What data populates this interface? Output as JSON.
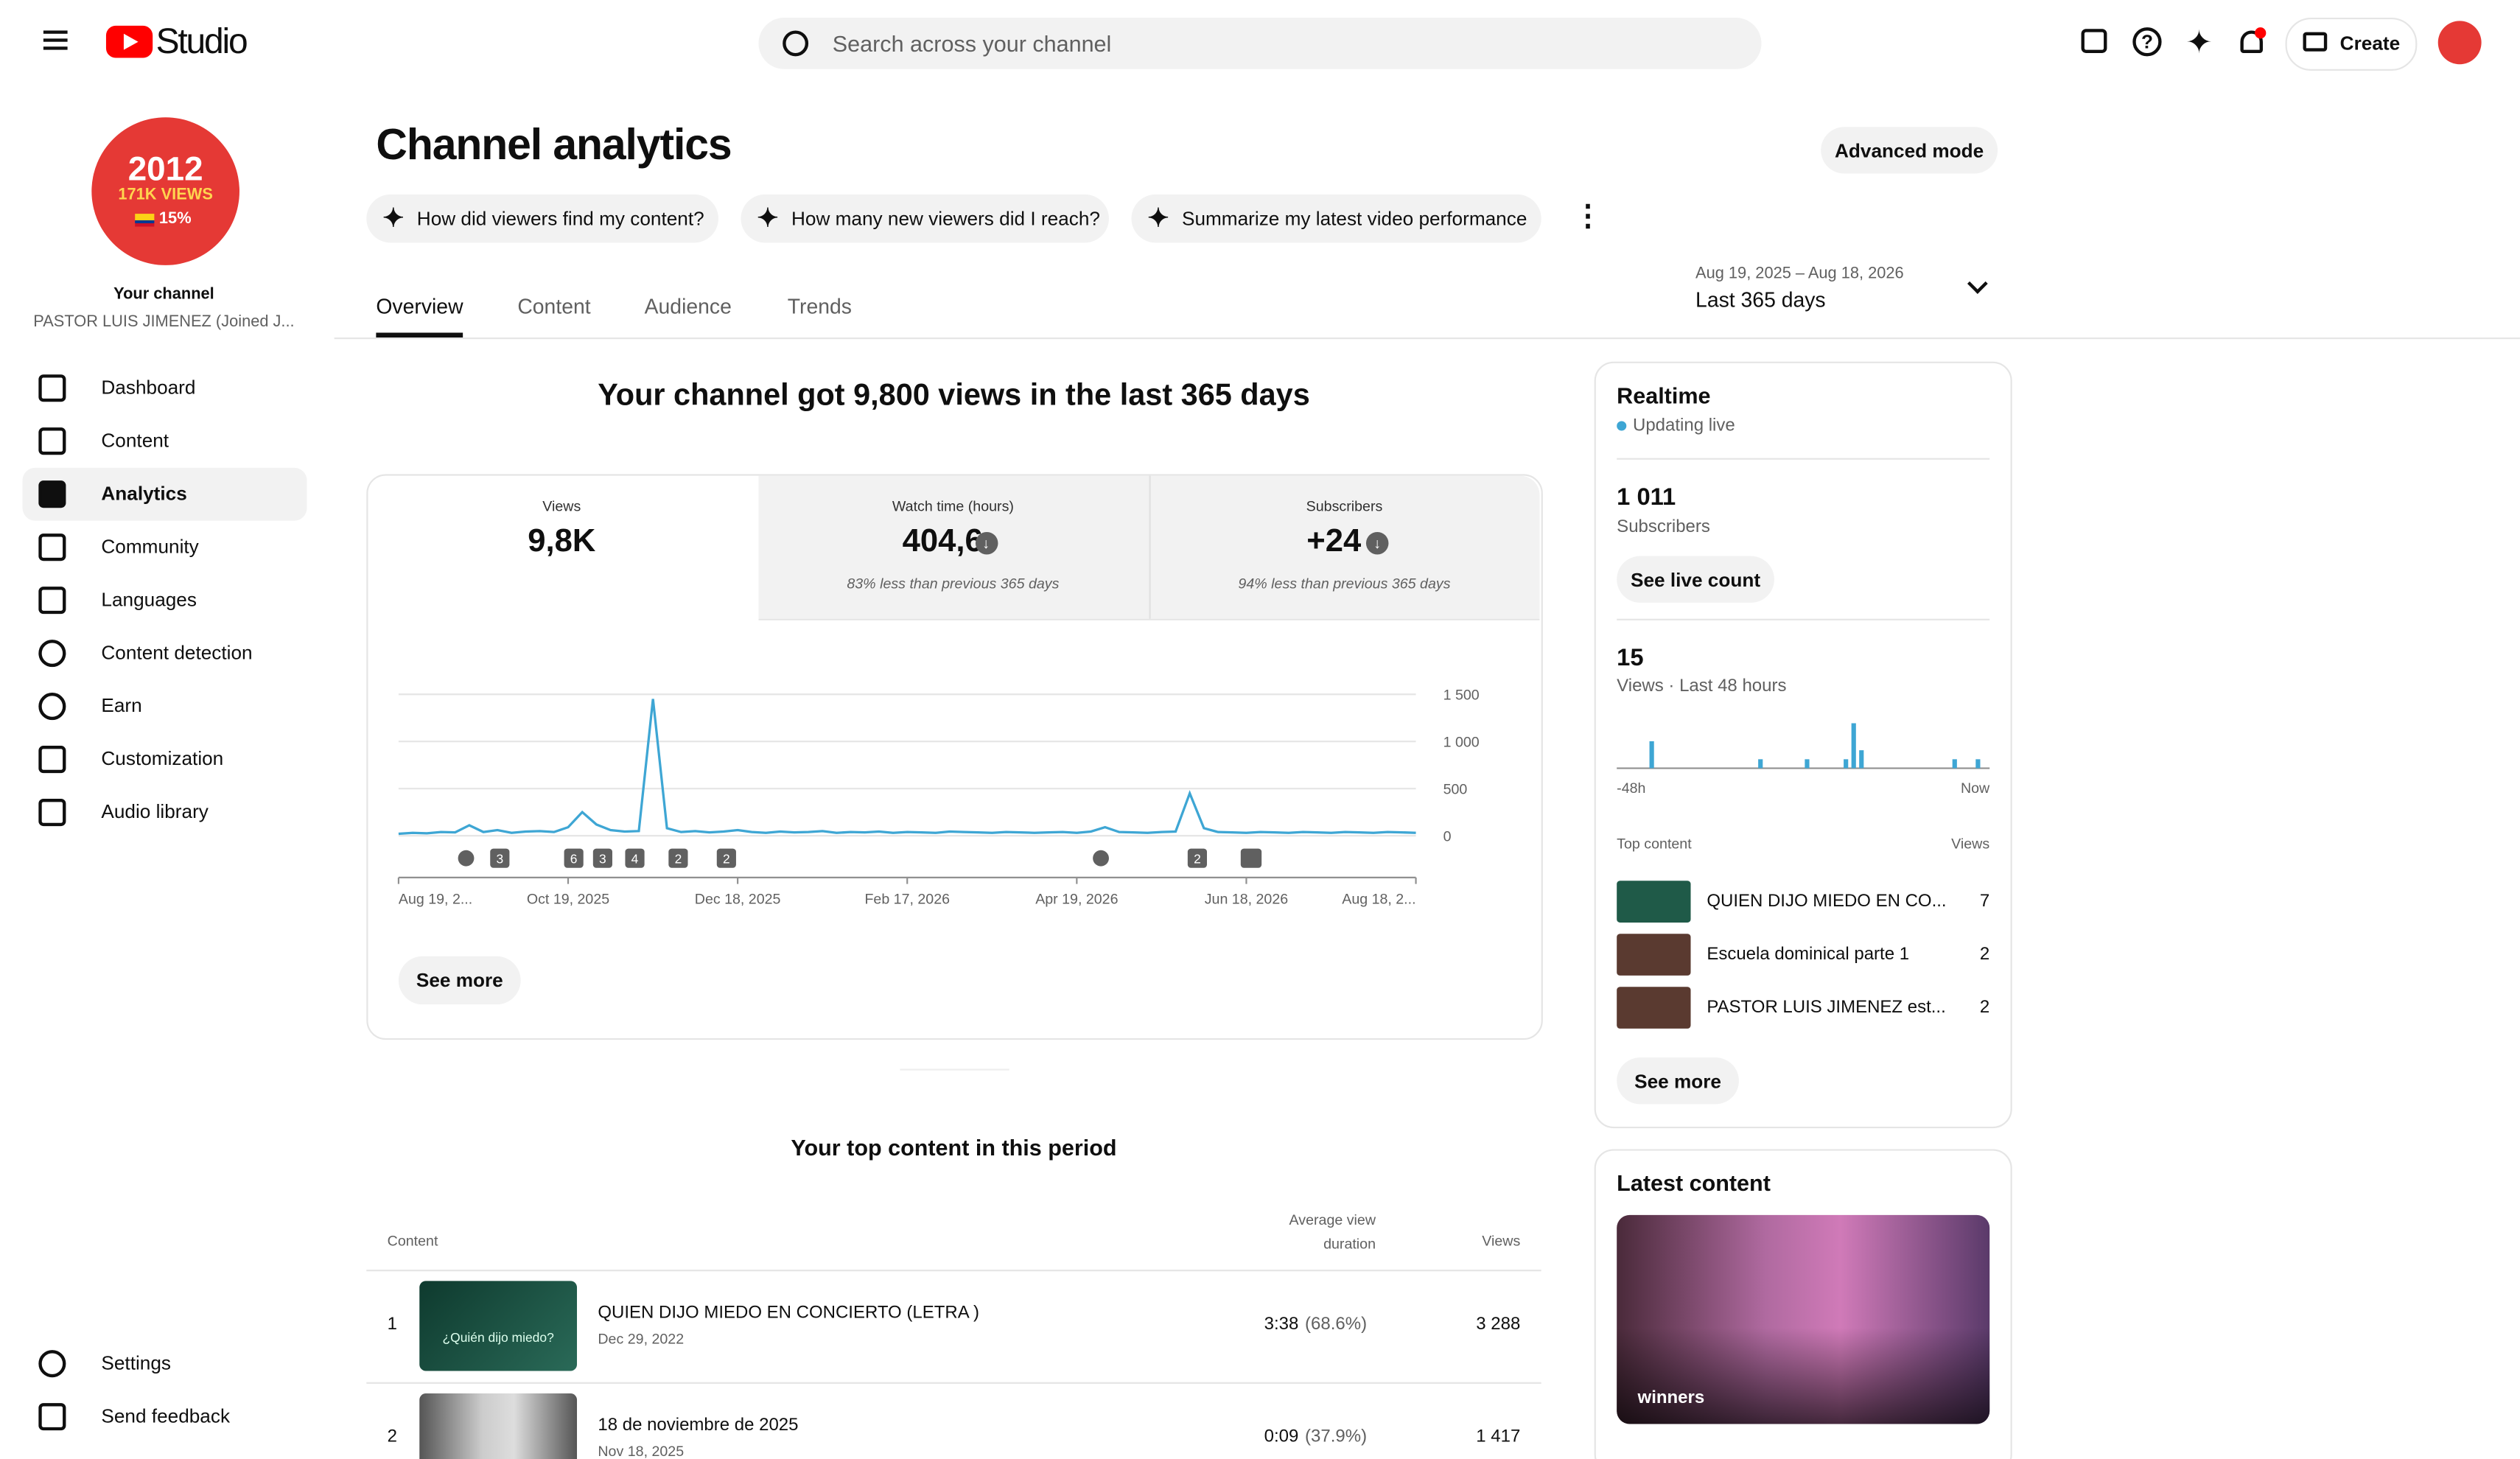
{
  "header": {
    "logo": "Studio",
    "search": "Search across your channel",
    "create": "Create"
  },
  "sidebar": {
    "avatar": [
      "2012",
      "171K VIEWS",
      "15%"
    ],
    "channel_label": "Your channel",
    "channel_name": "PASTOR LUIS JIMENEZ (Joined J...",
    "nav": [
      "Dashboard",
      "Content",
      "Analytics",
      "Community",
      "Languages",
      "Content detection",
      "Earn",
      "Customization",
      "Audio library"
    ],
    "footer_nav": [
      "Settings",
      "Send feedback"
    ]
  },
  "page": {
    "title": "Channel analytics",
    "advanced": "Advanced mode",
    "prompts": [
      "How did viewers find my content?",
      "How many new viewers did I reach?",
      "Summarize my latest video performance"
    ],
    "tabs": [
      "Overview",
      "Content",
      "Audience",
      "Trends"
    ],
    "date_range": "Aug 19, 2025 – Aug 18, 2026",
    "period": "Last 365 days"
  },
  "summary": {
    "headline": "Your channel got 9,800 views in the last 365 days",
    "metrics": [
      {
        "label": "Views",
        "value": "9,8K"
      },
      {
        "label": "Watch time (hours)",
        "value": "404,6",
        "note": "83% less than previous 365 days"
      },
      {
        "label": "Subscribers",
        "value": "+24",
        "note": "94% less than previous 365 days"
      }
    ],
    "see_more": "See more"
  },
  "chart_data": [
    {
      "type": "line",
      "color": "#3ea6d4",
      "values": [
        20,
        30,
        25,
        40,
        35,
        110,
        40,
        60,
        30,
        45,
        50,
        40,
        90,
        250,
        120,
        60,
        45,
        50,
        1450,
        80,
        40,
        50,
        35,
        45,
        60,
        40,
        30,
        45,
        35,
        40,
        50,
        30,
        40,
        35,
        45,
        30,
        40,
        35,
        30,
        45,
        40,
        35,
        30,
        40,
        35,
        30,
        35,
        40,
        30,
        45,
        90,
        40,
        35,
        30,
        40,
        45,
        450,
        80,
        40,
        35,
        30,
        40,
        35,
        30,
        40,
        35,
        30,
        40,
        35,
        30,
        40,
        35,
        30
      ],
      "xlim": [
        0,
        72
      ],
      "xticks": [
        {
          "value": 0,
          "label": "Aug 19, 2..."
        },
        {
          "value": 12,
          "label": "Oct 19, 2025"
        },
        {
          "value": 24,
          "label": "Dec 18, 2025"
        },
        {
          "value": 36,
          "label": "Feb 17, 2026"
        },
        {
          "value": 48,
          "label": "Apr 19, 2026"
        },
        {
          "value": 60,
          "label": "Jun 18, 2026"
        },
        {
          "value": 72,
          "label": "Aug 18, 2..."
        }
      ],
      "ylim": [
        0,
        1500
      ],
      "yticks": [
        0,
        500,
        {
          "value": 1000,
          "label": "1 000"
        },
        {
          "value": 1500,
          "label": "1 500"
        }
      ],
      "grid": true,
      "annotations": [
        "3",
        "6",
        "3",
        "4",
        "2",
        "2",
        "2"
      ]
    },
    {
      "type": "bar",
      "color": "#3ea6d4",
      "categories": [
        "-48h",
        null,
        null,
        null,
        null,
        null,
        null,
        null,
        null,
        null,
        null,
        null,
        null,
        null,
        null,
        null,
        null,
        null,
        null,
        null,
        null,
        null,
        null,
        null,
        null,
        null,
        null,
        null,
        null,
        null,
        null,
        null,
        null,
        null,
        null,
        null,
        null,
        null,
        null,
        null,
        null,
        null,
        null,
        null,
        null,
        null,
        null,
        "Now"
      ],
      "values": [
        0,
        0,
        0,
        0,
        3,
        0,
        0,
        0,
        0,
        0,
        0,
        0,
        0,
        0,
        0,
        0,
        0,
        0,
        1,
        0,
        0,
        0,
        0,
        0,
        1,
        0,
        0,
        0,
        0,
        1,
        5,
        2,
        0,
        0,
        0,
        0,
        0,
        0,
        0,
        0,
        0,
        0,
        0,
        1,
        0,
        0,
        1,
        0
      ],
      "ylim": [
        0,
        5
      ]
    }
  ],
  "realtime": {
    "title": "Realtime",
    "status": "Updating live",
    "subscribers": "1 011",
    "subscribers_label": "Subscribers",
    "live_button": "See live count",
    "views": "15",
    "views_label": "Views · Last 48 hours",
    "top_label": "Top content",
    "views_col": "Views",
    "items": [
      {
        "title": "QUIEN DIJO MIEDO EN CO...",
        "views": "7"
      },
      {
        "title": "Escuela dominical parte 1",
        "views": "2"
      },
      {
        "title": "PASTOR LUIS JIMENEZ est...",
        "views": "2"
      }
    ],
    "see_more": "See more"
  },
  "top_content": {
    "title": "Your top content in this period",
    "headers": [
      "Content",
      "Average view duration",
      "Views"
    ],
    "rows": [
      {
        "rank": "1",
        "title": "QUIEN DIJO MIEDO EN CONCIERTO (LETRA )",
        "date": "Dec 29, 2022",
        "thumb": "¿Quién dijo miedo?",
        "duration": "3:38",
        "pct": "(68.6%)",
        "views": "3 288"
      },
      {
        "rank": "2",
        "title": "18 de noviembre de 2025",
        "date": "Nov 18, 2025",
        "duration": "0:09",
        "pct": "(37.9%)",
        "views": "1 417"
      }
    ]
  },
  "latest": {
    "title": "Latest content",
    "caption": "winners"
  }
}
